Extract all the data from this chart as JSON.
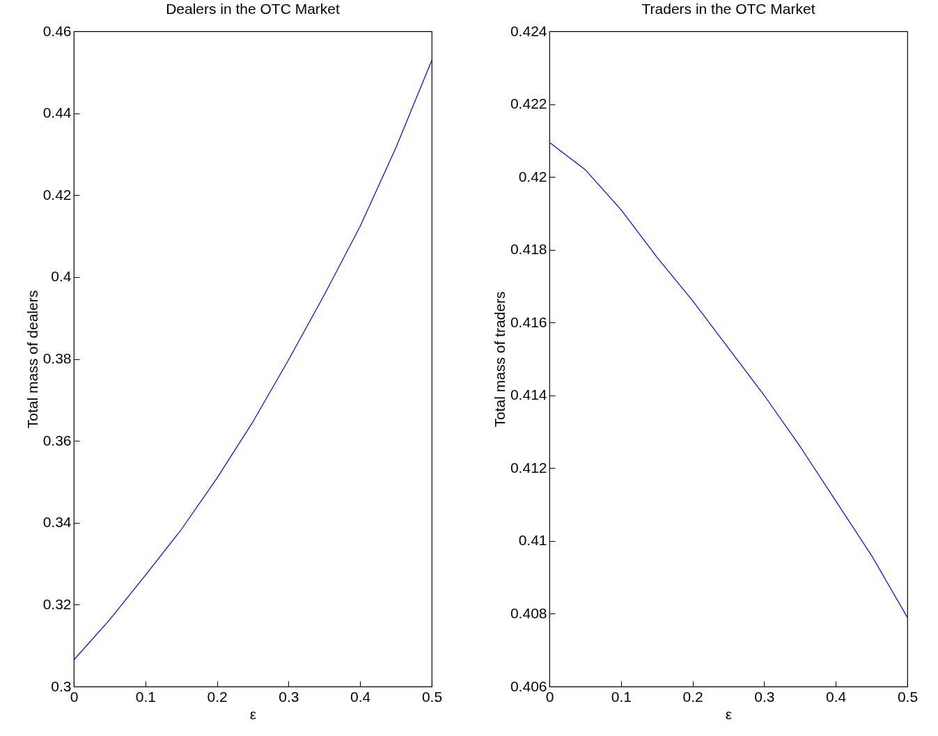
{
  "chart_data": [
    {
      "type": "line",
      "title": "Dealers in the OTC Market",
      "xlabel": "ε",
      "ylabel": "Total mass of dealers",
      "x": [
        0,
        0.05,
        0.1,
        0.15,
        0.2,
        0.25,
        0.3,
        0.35,
        0.4,
        0.45,
        0.5
      ],
      "series": [
        {
          "color": "#0000ff",
          "values": [
            0.3065,
            0.3163,
            0.3272,
            0.3383,
            0.3509,
            0.3646,
            0.3798,
            0.3957,
            0.4124,
            0.4316,
            0.4529
          ]
        }
      ],
      "xlim": [
        0,
        0.5
      ],
      "xticks": [
        0,
        0.1,
        0.2,
        0.3,
        0.4,
        0.5
      ],
      "ylim": [
        0.3,
        0.46
      ],
      "yticks": [
        0.3,
        0.32,
        0.34,
        0.36,
        0.38,
        0.4,
        0.42,
        0.44,
        0.46
      ],
      "grid": false
    },
    {
      "type": "line",
      "title": "Traders in the OTC Market",
      "xlabel": "ε",
      "ylabel": "Total mass of traders",
      "x": [
        0,
        0.05,
        0.1,
        0.15,
        0.2,
        0.25,
        0.3,
        0.35,
        0.4,
        0.45,
        0.5
      ],
      "series": [
        {
          "color": "#0000ff",
          "values": [
            0.42095,
            0.4202,
            0.4191,
            0.4178,
            0.4166,
            0.4153,
            0.414,
            0.4126,
            0.4111,
            0.4096,
            0.4079
          ]
        }
      ],
      "xlim": [
        0,
        0.5
      ],
      "xticks": [
        0,
        0.1,
        0.2,
        0.3,
        0.4,
        0.5
      ],
      "ylim": [
        0.406,
        0.424
      ],
      "yticks": [
        0.406,
        0.408,
        0.41,
        0.412,
        0.414,
        0.416,
        0.418,
        0.42,
        0.422,
        0.424
      ],
      "grid": false
    }
  ]
}
